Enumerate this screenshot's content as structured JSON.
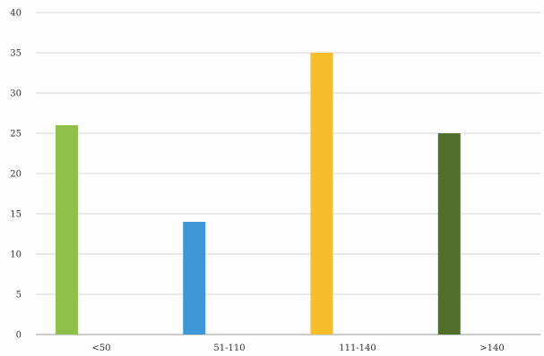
{
  "chart_data": {
    "type": "bar",
    "title": "",
    "xlabel": "",
    "ylabel": "",
    "categories": [
      "<50",
      "51-110",
      "111-140",
      ">140"
    ],
    "values": [
      26,
      14,
      35,
      25
    ],
    "colors": [
      "#8fc14a",
      "#3f96d6",
      "#f8bd2a",
      "#4f6f2b"
    ],
    "ylim": [
      0,
      40
    ],
    "yticks": [
      0,
      5,
      10,
      15,
      20,
      25,
      30,
      35,
      40
    ],
    "grid": true,
    "legend": "none"
  }
}
